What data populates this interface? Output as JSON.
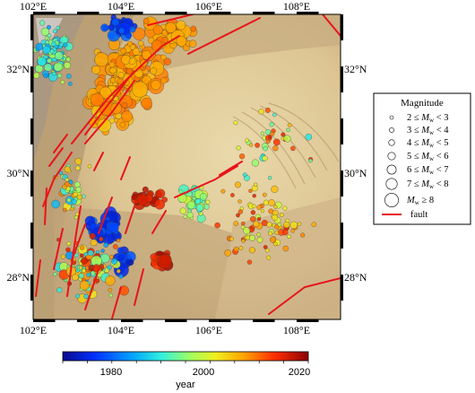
{
  "map": {
    "x_labels": [
      "102°E",
      "104°E",
      "106°E",
      "108°E"
    ],
    "y_labels": [
      "32°N",
      "30°N",
      "28°N"
    ],
    "lon_range": [
      102,
      109
    ],
    "lat_range": [
      27,
      33
    ]
  },
  "legend": {
    "title": "Magnitude",
    "items": [
      {
        "lo": "2",
        "hi": "3"
      },
      {
        "lo": "3",
        "hi": "4"
      },
      {
        "lo": "4",
        "hi": "5"
      },
      {
        "lo": "5",
        "hi": "6"
      },
      {
        "lo": "6",
        "hi": "7"
      },
      {
        "lo": "7",
        "hi": "8"
      }
    ],
    "last_item_value": "8",
    "mag_symbol": "M",
    "mag_sub": "w",
    "fault_label": "fault"
  },
  "colorbar": {
    "label": "year",
    "ticks": [
      "1980",
      "2000",
      "2020"
    ],
    "range": [
      1970,
      2023
    ]
  },
  "colors": {
    "fault": "#e8141a",
    "plain": "#e6d4a4",
    "mountain": "#b49a72"
  }
}
